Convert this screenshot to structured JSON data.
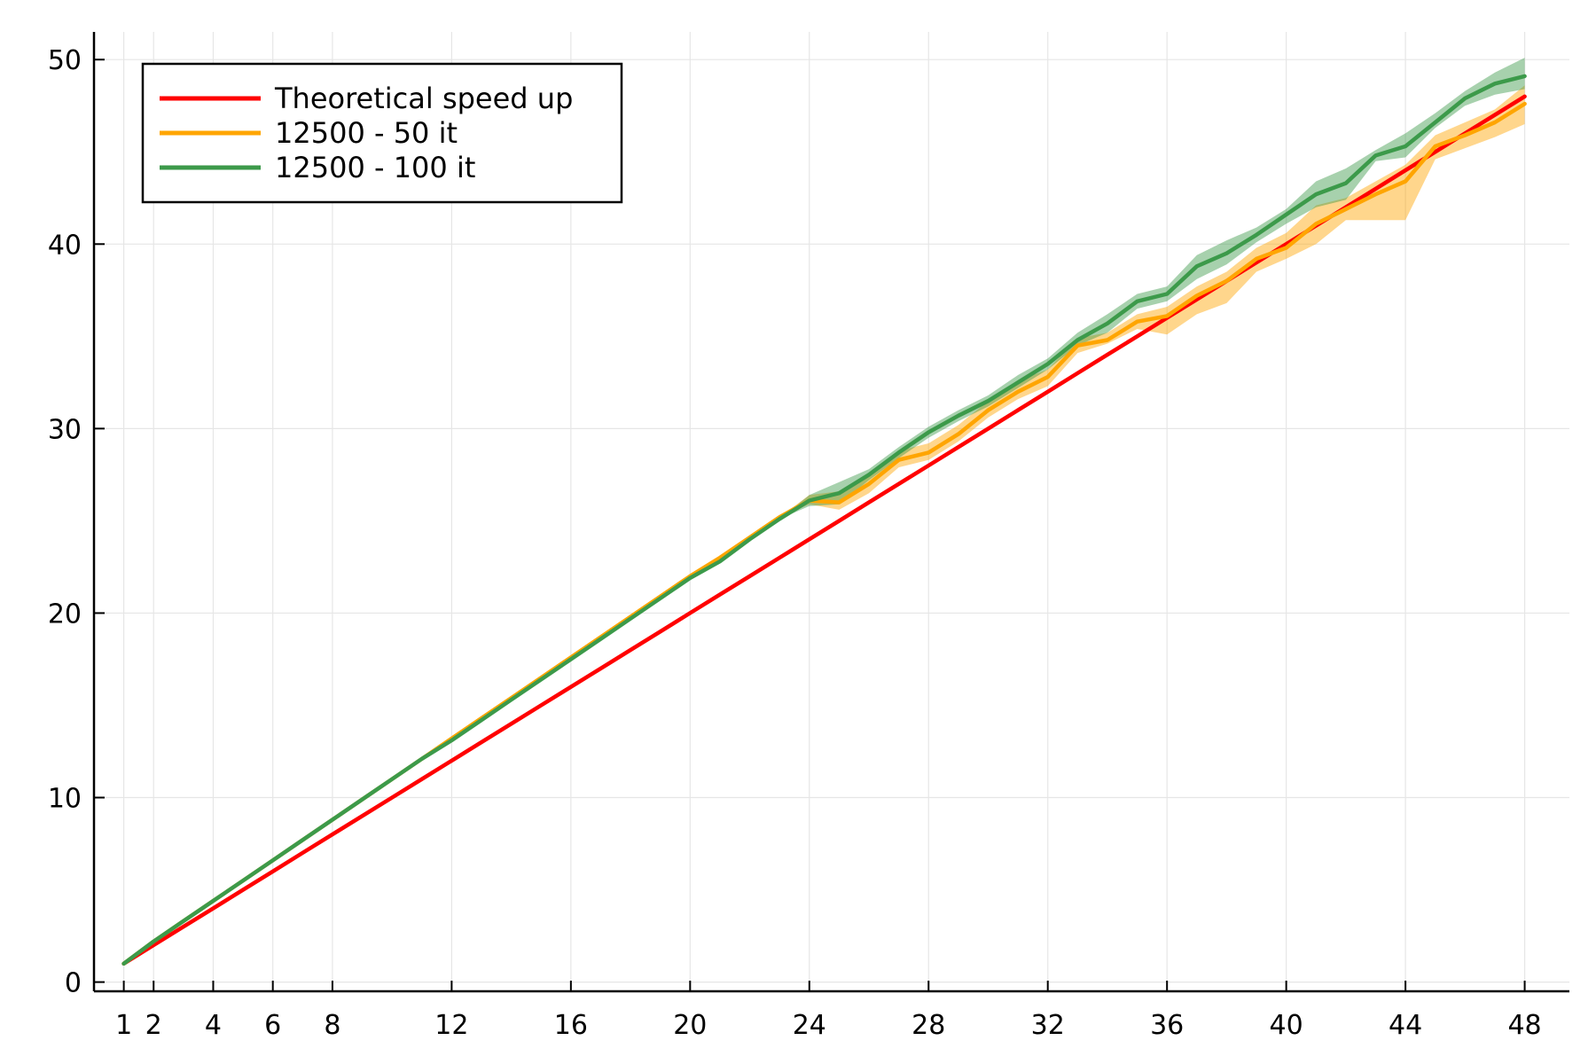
{
  "chart_data": {
    "type": "line",
    "title": "",
    "xlabel": "",
    "ylabel": "",
    "xlim": [
      0,
      49.5
    ],
    "ylim": [
      -0.5,
      51.5
    ],
    "xticks": [
      1,
      2,
      4,
      6,
      8,
      12,
      16,
      20,
      24,
      28,
      32,
      36,
      40,
      44,
      48
    ],
    "yticks": [
      0,
      10,
      20,
      30,
      40,
      50
    ],
    "grid": true,
    "legend_position": "top-left",
    "x": [
      1,
      2,
      3,
      4,
      5,
      6,
      7,
      8,
      9,
      10,
      11,
      12,
      13,
      14,
      15,
      16,
      17,
      18,
      19,
      20,
      21,
      22,
      23,
      24,
      25,
      26,
      27,
      28,
      29,
      30,
      31,
      32,
      33,
      34,
      35,
      36,
      37,
      38,
      39,
      40,
      41,
      42,
      43,
      44,
      45,
      46,
      47,
      48
    ],
    "series": [
      {
        "name": "Theoretical speed up",
        "color": "#ff0000",
        "values": [
          1,
          2,
          3,
          4,
          5,
          6,
          7,
          8,
          9,
          10,
          11,
          12,
          13,
          14,
          15,
          16,
          17,
          18,
          19,
          20,
          21,
          22,
          23,
          24,
          25,
          26,
          27,
          28,
          29,
          30,
          31,
          32,
          33,
          34,
          35,
          36,
          37,
          38,
          39,
          40,
          41,
          42,
          43,
          44,
          45,
          46,
          47,
          48
        ]
      },
      {
        "name": "12500 - 50 it",
        "color": "#ffa500",
        "values": [
          1,
          2.2,
          3.3,
          4.4,
          5.5,
          6.6,
          7.7,
          8.8,
          9.9,
          11,
          12.1,
          13.2,
          14.3,
          15.4,
          16.5,
          17.6,
          18.7,
          19.8,
          20.9,
          22,
          23,
          24.1,
          25.2,
          26.1,
          26,
          27,
          28.3,
          28.7,
          29.7,
          31,
          32,
          32.8,
          34.5,
          34.8,
          35.8,
          36.1,
          37.2,
          38,
          39.2,
          39.8,
          41.1,
          41.9,
          42.7,
          43.4,
          45.3,
          45.9,
          46.6,
          47.6
        ],
        "lower": [
          1,
          2.2,
          3.3,
          4.4,
          5.5,
          6.6,
          7.7,
          8.8,
          9.9,
          11,
          12.1,
          13.2,
          14.3,
          15.4,
          16.5,
          17.6,
          18.7,
          19.8,
          20.9,
          22,
          23,
          24.1,
          25.2,
          25.9,
          25.6,
          26.5,
          27.9,
          28.3,
          29.3,
          30.6,
          31.6,
          32.3,
          34.1,
          34.6,
          35.4,
          35.1,
          36.2,
          36.8,
          38.5,
          39.2,
          40,
          41.3,
          41.3,
          41.3,
          44.6,
          45.2,
          45.8,
          46.5
        ],
        "upper": [
          1,
          2.2,
          3.3,
          4.4,
          5.5,
          6.6,
          7.7,
          8.8,
          9.9,
          11,
          12.1,
          13.2,
          14.3,
          15.4,
          16.5,
          17.6,
          18.7,
          19.8,
          20.9,
          22,
          23,
          24.1,
          25.2,
          26.4,
          26.6,
          27.6,
          28.8,
          29.2,
          30.2,
          31.5,
          32.6,
          33.2,
          34.9,
          35.2,
          36.2,
          36.6,
          37.7,
          38.5,
          39.8,
          40.6,
          42.1,
          42.5,
          43.4,
          44.3,
          45.9,
          46.6,
          47.3,
          48.6
        ]
      },
      {
        "name": "12500 - 100 it",
        "color": "#3c9a4a",
        "values": [
          1,
          2.2,
          3.3,
          4.4,
          5.5,
          6.6,
          7.7,
          8.8,
          9.9,
          11,
          12.1,
          13.1,
          14.2,
          15.3,
          16.4,
          17.5,
          18.6,
          19.7,
          20.8,
          21.9,
          22.8,
          24,
          25.1,
          26.1,
          26.5,
          27.5,
          28.7,
          29.8,
          30.7,
          31.5,
          32.5,
          33.5,
          34.8,
          35.7,
          36.9,
          37.3,
          38.8,
          39.5,
          40.5,
          41.6,
          42.7,
          43.3,
          44.8,
          45.3,
          46.6,
          47.9,
          48.7,
          49.1
        ],
        "lower": [
          1,
          2.2,
          3.3,
          4.4,
          5.5,
          6.6,
          7.7,
          8.8,
          9.9,
          11,
          12.1,
          13.1,
          14.2,
          15.3,
          16.4,
          17.5,
          18.6,
          19.7,
          20.8,
          21.9,
          22.8,
          24,
          25.1,
          25.8,
          25.9,
          27.2,
          28.4,
          29.5,
          30.4,
          31.2,
          32.2,
          33.2,
          34.5,
          35.2,
          36.5,
          36.9,
          38.1,
          38.9,
          40.1,
          41.1,
          42,
          42.4,
          44.5,
          44.7,
          46.3,
          47.5,
          48.1,
          48.4
        ],
        "upper": [
          1,
          2.2,
          3.3,
          4.4,
          5.5,
          6.6,
          7.7,
          8.8,
          9.9,
          11,
          12.1,
          13.1,
          14.2,
          15.3,
          16.4,
          17.5,
          18.6,
          19.7,
          20.8,
          21.9,
          22.8,
          24,
          25.1,
          26.4,
          27.1,
          27.8,
          29,
          30.1,
          31,
          31.8,
          32.9,
          33.8,
          35.2,
          36.2,
          37.3,
          37.7,
          39.4,
          40.2,
          40.9,
          41.9,
          43.4,
          44.1,
          45.1,
          46,
          47.1,
          48.3,
          49.3,
          50.1
        ]
      }
    ]
  }
}
